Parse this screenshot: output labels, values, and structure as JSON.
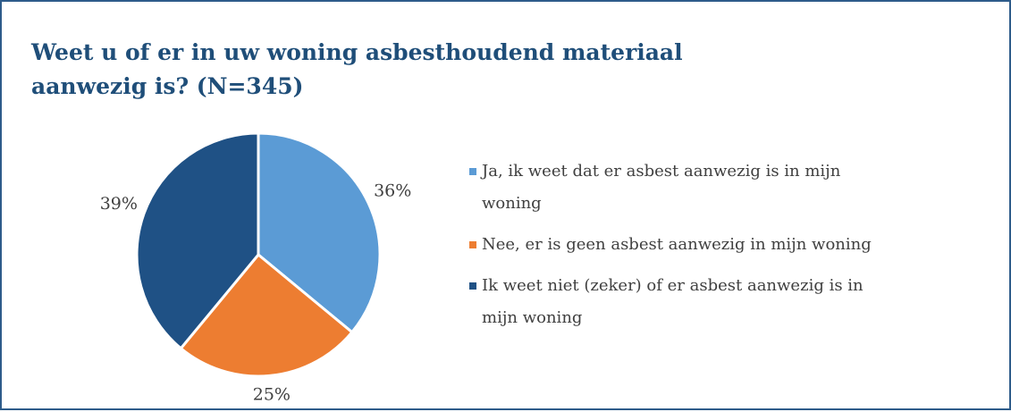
{
  "chart_data": {
    "type": "pie",
    "title": "Weet u of er in uw woning asbesthoudend materiaal aanwezig is? (N=345)",
    "categories": [
      "Ja, ik weet dat er asbest aanwezig is in mijn woning",
      "Nee, er is geen asbest aanwezig in mijn woning",
      "Ik weet niet (zeker) of er asbest aanwezig is in mijn woning"
    ],
    "values": [
      36,
      25,
      39
    ],
    "value_labels": [
      "36%",
      "25%",
      "39%"
    ],
    "colors": [
      "#5b9bd5",
      "#ed7d31",
      "#1f5185"
    ],
    "legend": "right"
  }
}
